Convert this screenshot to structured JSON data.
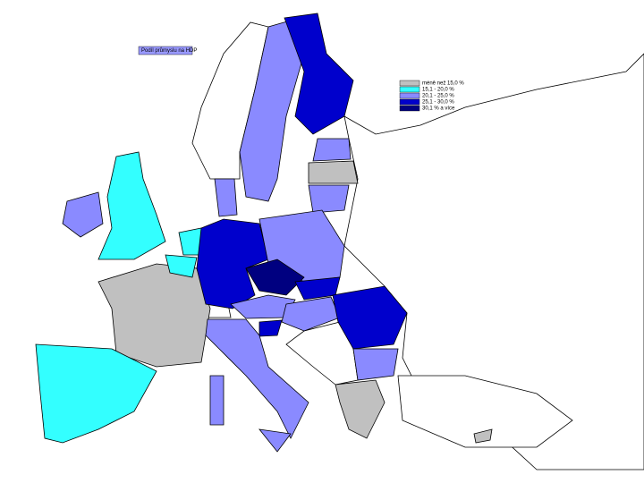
{
  "title": "Podíl průmyslu na HDP",
  "legend": [
    {
      "label": "méně než 15,0 %",
      "color": "#c0c0c0"
    },
    {
      "label": "15,1 - 20,0 %",
      "color": "#33ffff"
    },
    {
      "label": "20,1 - 25,0 %",
      "color": "#8a8aff"
    },
    {
      "label": "25,1 - 30,0 %",
      "color": "#0000cc"
    },
    {
      "label": "30,1 % a více",
      "color": "#000080"
    }
  ]
}
